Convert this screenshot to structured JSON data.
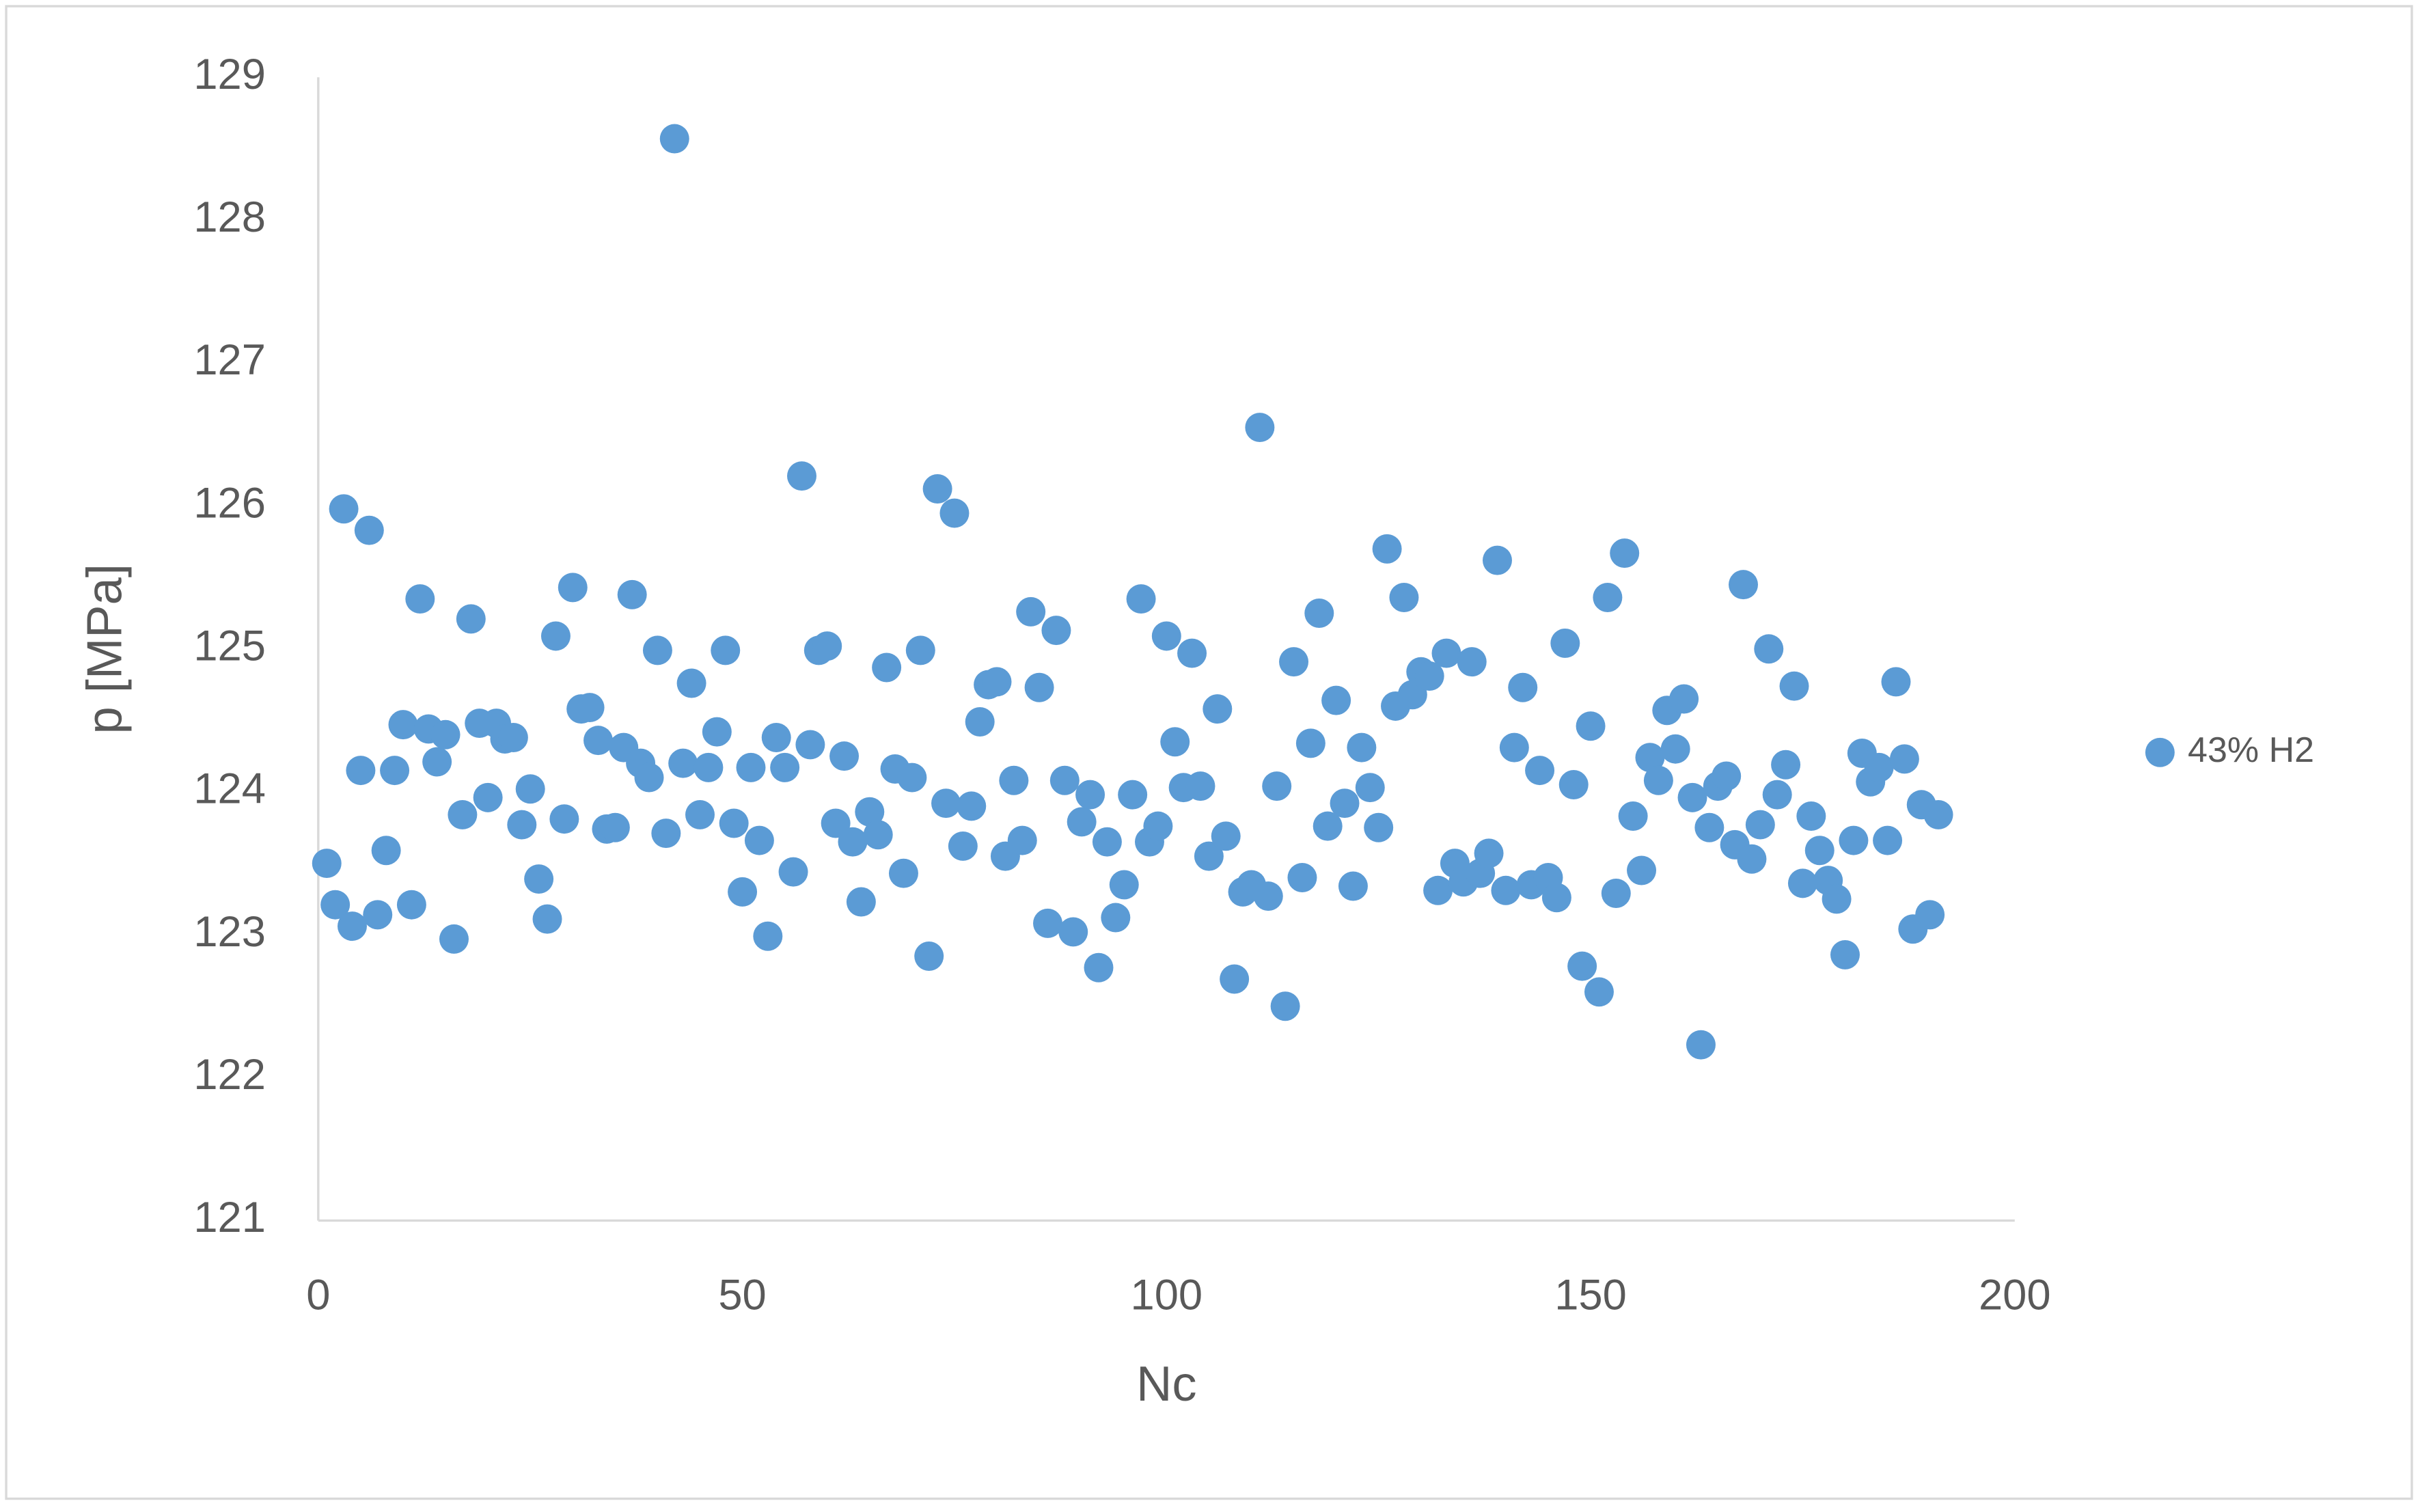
{
  "chart_data": {
    "type": "scatter",
    "x_label": "Nc",
    "y_label": "p [MPa]",
    "xlim": [
      0,
      200
    ],
    "xticks": [
      0,
      50,
      100,
      150,
      200
    ],
    "ylim": [
      121,
      129
    ],
    "yticks": [
      121,
      122,
      123,
      124,
      125,
      126,
      127,
      128,
      129
    ],
    "grid": false,
    "legend": "right",
    "series": [
      {
        "name": "43% H2",
        "color": "#5b9bd5",
        "x": [
          1,
          2,
          3,
          4,
          5,
          6,
          7,
          8,
          9,
          10,
          11,
          12,
          13,
          14,
          15,
          16,
          17,
          18,
          19,
          20,
          21,
          22,
          23,
          24,
          25,
          26,
          27,
          28,
          29,
          30,
          31,
          32,
          33,
          34,
          35,
          36,
          37,
          38,
          39,
          40,
          41,
          42,
          43,
          44,
          45,
          46,
          47,
          48,
          49,
          50,
          51,
          52,
          53,
          54,
          55,
          56,
          57,
          58,
          59,
          60,
          61,
          62,
          63,
          64,
          65,
          66,
          67,
          68,
          69,
          70,
          71,
          72,
          73,
          74,
          75,
          76,
          77,
          78,
          79,
          80,
          81,
          82,
          83,
          84,
          85,
          86,
          87,
          88,
          89,
          90,
          91,
          92,
          93,
          94,
          95,
          96,
          97,
          98,
          99,
          100,
          101,
          102,
          103,
          104,
          105,
          106,
          107,
          108,
          109,
          110,
          111,
          112,
          113,
          114,
          115,
          116,
          117,
          118,
          119,
          120,
          121,
          122,
          123,
          124,
          125,
          126,
          127,
          128,
          129,
          130,
          131,
          132,
          133,
          134,
          135,
          136,
          137,
          138,
          139,
          140,
          141,
          142,
          143,
          144,
          145,
          146,
          147,
          148,
          149,
          150,
          151,
          152,
          153,
          154,
          155,
          156,
          157,
          158,
          159,
          160,
          161,
          162,
          163,
          164,
          165,
          166,
          167,
          168,
          169,
          170,
          171,
          172,
          173,
          174,
          175,
          176,
          177,
          178,
          179,
          180,
          181,
          182,
          183,
          184,
          185,
          186,
          187,
          188,
          189,
          190,
          191
        ],
        "values": [
          123.5,
          123.21,
          125.98,
          123.06,
          124.15,
          125.83,
          123.14,
          123.59,
          124.15,
          124.47,
          123.21,
          125.35,
          124.44,
          124.21,
          124.4,
          122.97,
          123.84,
          125.21,
          124.48,
          123.96,
          124.48,
          124.37,
          124.38,
          123.77,
          124.02,
          123.39,
          123.11,
          125.09,
          123.81,
          125.43,
          124.58,
          124.59,
          124.36,
          123.74,
          123.75,
          124.31,
          125.38,
          124.2,
          124.1,
          124.99,
          123.71,
          128.57,
          124.2,
          124.76,
          123.84,
          124.17,
          124.42,
          124.99,
          123.78,
          123.3,
          124.17,
          123.66,
          122.99,
          124.38,
          124.17,
          123.44,
          126.21,
          124.33,
          124.99,
          125.02,
          123.78,
          124.25,
          123.65,
          123.23,
          123.86,
          123.7,
          124.87,
          124.16,
          123.43,
          124.1,
          124.99,
          122.85,
          126.12,
          123.92,
          125.95,
          123.62,
          123.9,
          124.49,
          124.75,
          124.77,
          123.55,
          124.08,
          123.66,
          125.26,
          124.73,
          123.08,
          125.13,
          124.08,
          123.02,
          123.79,
          123.98,
          122.77,
          123.65,
          123.12,
          123.35,
          123.98,
          125.35,
          123.65,
          123.76,
          125.09,
          124.35,
          124.03,
          124.97,
          124.04,
          123.55,
          124.58,
          123.69,
          122.69,
          123.3,
          123.35,
          126.55,
          123.27,
          124.04,
          122.5,
          124.91,
          123.4,
          124.34,
          125.25,
          123.76,
          124.64,
          123.92,
          123.34,
          124.31,
          124.03,
          123.75,
          125.7,
          124.6,
          125.36,
          124.68,
          124.84,
          124.81,
          123.31,
          124.97,
          123.5,
          123.37,
          124.91,
          123.43,
          123.57,
          125.62,
          123.31,
          124.31,
          124.73,
          123.35,
          124.15,
          123.4,
          123.26,
          125.04,
          124.05,
          122.78,
          124.46,
          122.6,
          125.36,
          123.29,
          125.67,
          123.83,
          123.45,
          124.24,
          124.08,
          124.57,
          124.3,
          124.65,
          123.96,
          122.23,
          123.75,
          124.04,
          124.11,
          123.63,
          125.45,
          123.53,
          123.77,
          125.0,
          123.98,
          124.19,
          124.74,
          123.36,
          123.83,
          123.59,
          123.38,
          123.25,
          122.86,
          123.66,
          124.27,
          124.07,
          124.17,
          123.66,
          124.77,
          124.23,
          123.04,
          123.91,
          123.14,
          123.84
        ]
      }
    ]
  }
}
